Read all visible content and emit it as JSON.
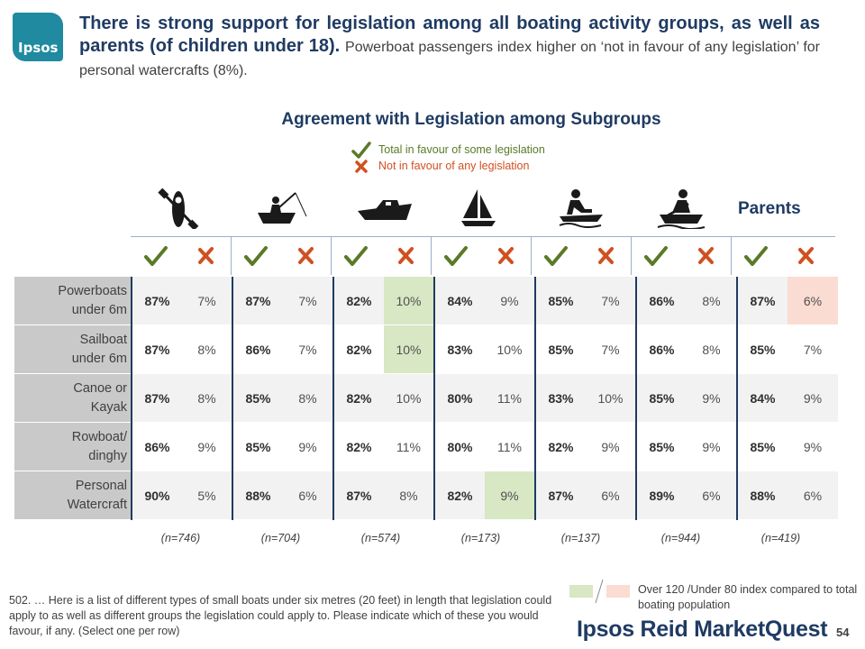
{
  "logo": {
    "text": "Ipsos"
  },
  "headline": {
    "bold": "There is strong support for legislation among all boating activity groups, as well as parents (of children under 18).",
    "sub": "Powerboat passengers index higher on ‘not in favour of any legislation’ for personal watercrafts (8%)."
  },
  "chart_title": "Agreement with Legislation among Subgroups",
  "legend": {
    "in_favour": "Total in favour of some legislation",
    "not_in_favour": "Not in favour of any legislation"
  },
  "colors": {
    "navy": "#1f3b63",
    "green_check": "#5a7a27",
    "red_x": "#d05020",
    "highlight_over": "#d8e7c4",
    "highlight_under": "#fadcd2"
  },
  "groups": [
    {
      "icon": "canoe-paddler-icon",
      "n": "(n=746)"
    },
    {
      "icon": "rowboat-fisher-icon",
      "n": "(n=704)"
    },
    {
      "icon": "powerboat-icon",
      "n": "(n=574)"
    },
    {
      "icon": "sailboat-icon",
      "n": "(n=173)"
    },
    {
      "icon": "personal-watercraft-icon",
      "n": "(n=137)"
    },
    {
      "icon": "rowing-icon",
      "n": "(n=944)"
    },
    {
      "label": "Parents",
      "n": "(n=419)"
    }
  ],
  "rows": [
    {
      "label1": "Powerboats",
      "label2": "under 6m",
      "cells": [
        [
          "87%",
          "7%"
        ],
        [
          "87%",
          "7%"
        ],
        [
          "82%",
          "10%"
        ],
        [
          "84%",
          "9%"
        ],
        [
          "85%",
          "7%"
        ],
        [
          "86%",
          "8%"
        ],
        [
          "87%",
          "6%"
        ]
      ]
    },
    {
      "label1": "Sailboat",
      "label2": "under 6m",
      "cells": [
        [
          "87%",
          "8%"
        ],
        [
          "86%",
          "7%"
        ],
        [
          "82%",
          "10%"
        ],
        [
          "83%",
          "10%"
        ],
        [
          "85%",
          "7%"
        ],
        [
          "86%",
          "8%"
        ],
        [
          "85%",
          "7%"
        ]
      ]
    },
    {
      "label1": "Canoe or",
      "label2": "Kayak",
      "cells": [
        [
          "87%",
          "8%"
        ],
        [
          "85%",
          "8%"
        ],
        [
          "82%",
          "10%"
        ],
        [
          "80%",
          "11%"
        ],
        [
          "83%",
          "10%"
        ],
        [
          "85%",
          "9%"
        ],
        [
          "84%",
          "9%"
        ]
      ]
    },
    {
      "label1": "Rowboat/",
      "label2": "dinghy",
      "cells": [
        [
          "86%",
          "9%"
        ],
        [
          "85%",
          "9%"
        ],
        [
          "82%",
          "11%"
        ],
        [
          "80%",
          "11%"
        ],
        [
          "82%",
          "9%"
        ],
        [
          "85%",
          "9%"
        ],
        [
          "85%",
          "9%"
        ]
      ]
    },
    {
      "label1": "Personal",
      "label2": "Watercraft",
      "cells": [
        [
          "90%",
          "5%"
        ],
        [
          "88%",
          "6%"
        ],
        [
          "87%",
          "8%"
        ],
        [
          "82%",
          "9%"
        ],
        [
          "87%",
          "6%"
        ],
        [
          "89%",
          "6%"
        ],
        [
          "88%",
          "6%"
        ]
      ]
    }
  ],
  "highlights": {
    "over_120": [
      [
        0,
        2,
        1
      ],
      [
        1,
        2,
        1
      ],
      [
        4,
        3,
        1
      ]
    ],
    "under_80": [
      [
        0,
        6,
        1
      ]
    ]
  },
  "footnote": "502. … Here is a list of different types of small boats under six metres (20 feet) in length that legislation could apply to as well as different groups the legislation could apply to. Please indicate which of these you would favour, if any. (Select one per row)",
  "key_text": "Over 120 /Under 80 index compared to total boating population",
  "brand": {
    "part1": "Ipsos Reid",
    "part2": "MarketQuest"
  },
  "page_number": "54"
}
